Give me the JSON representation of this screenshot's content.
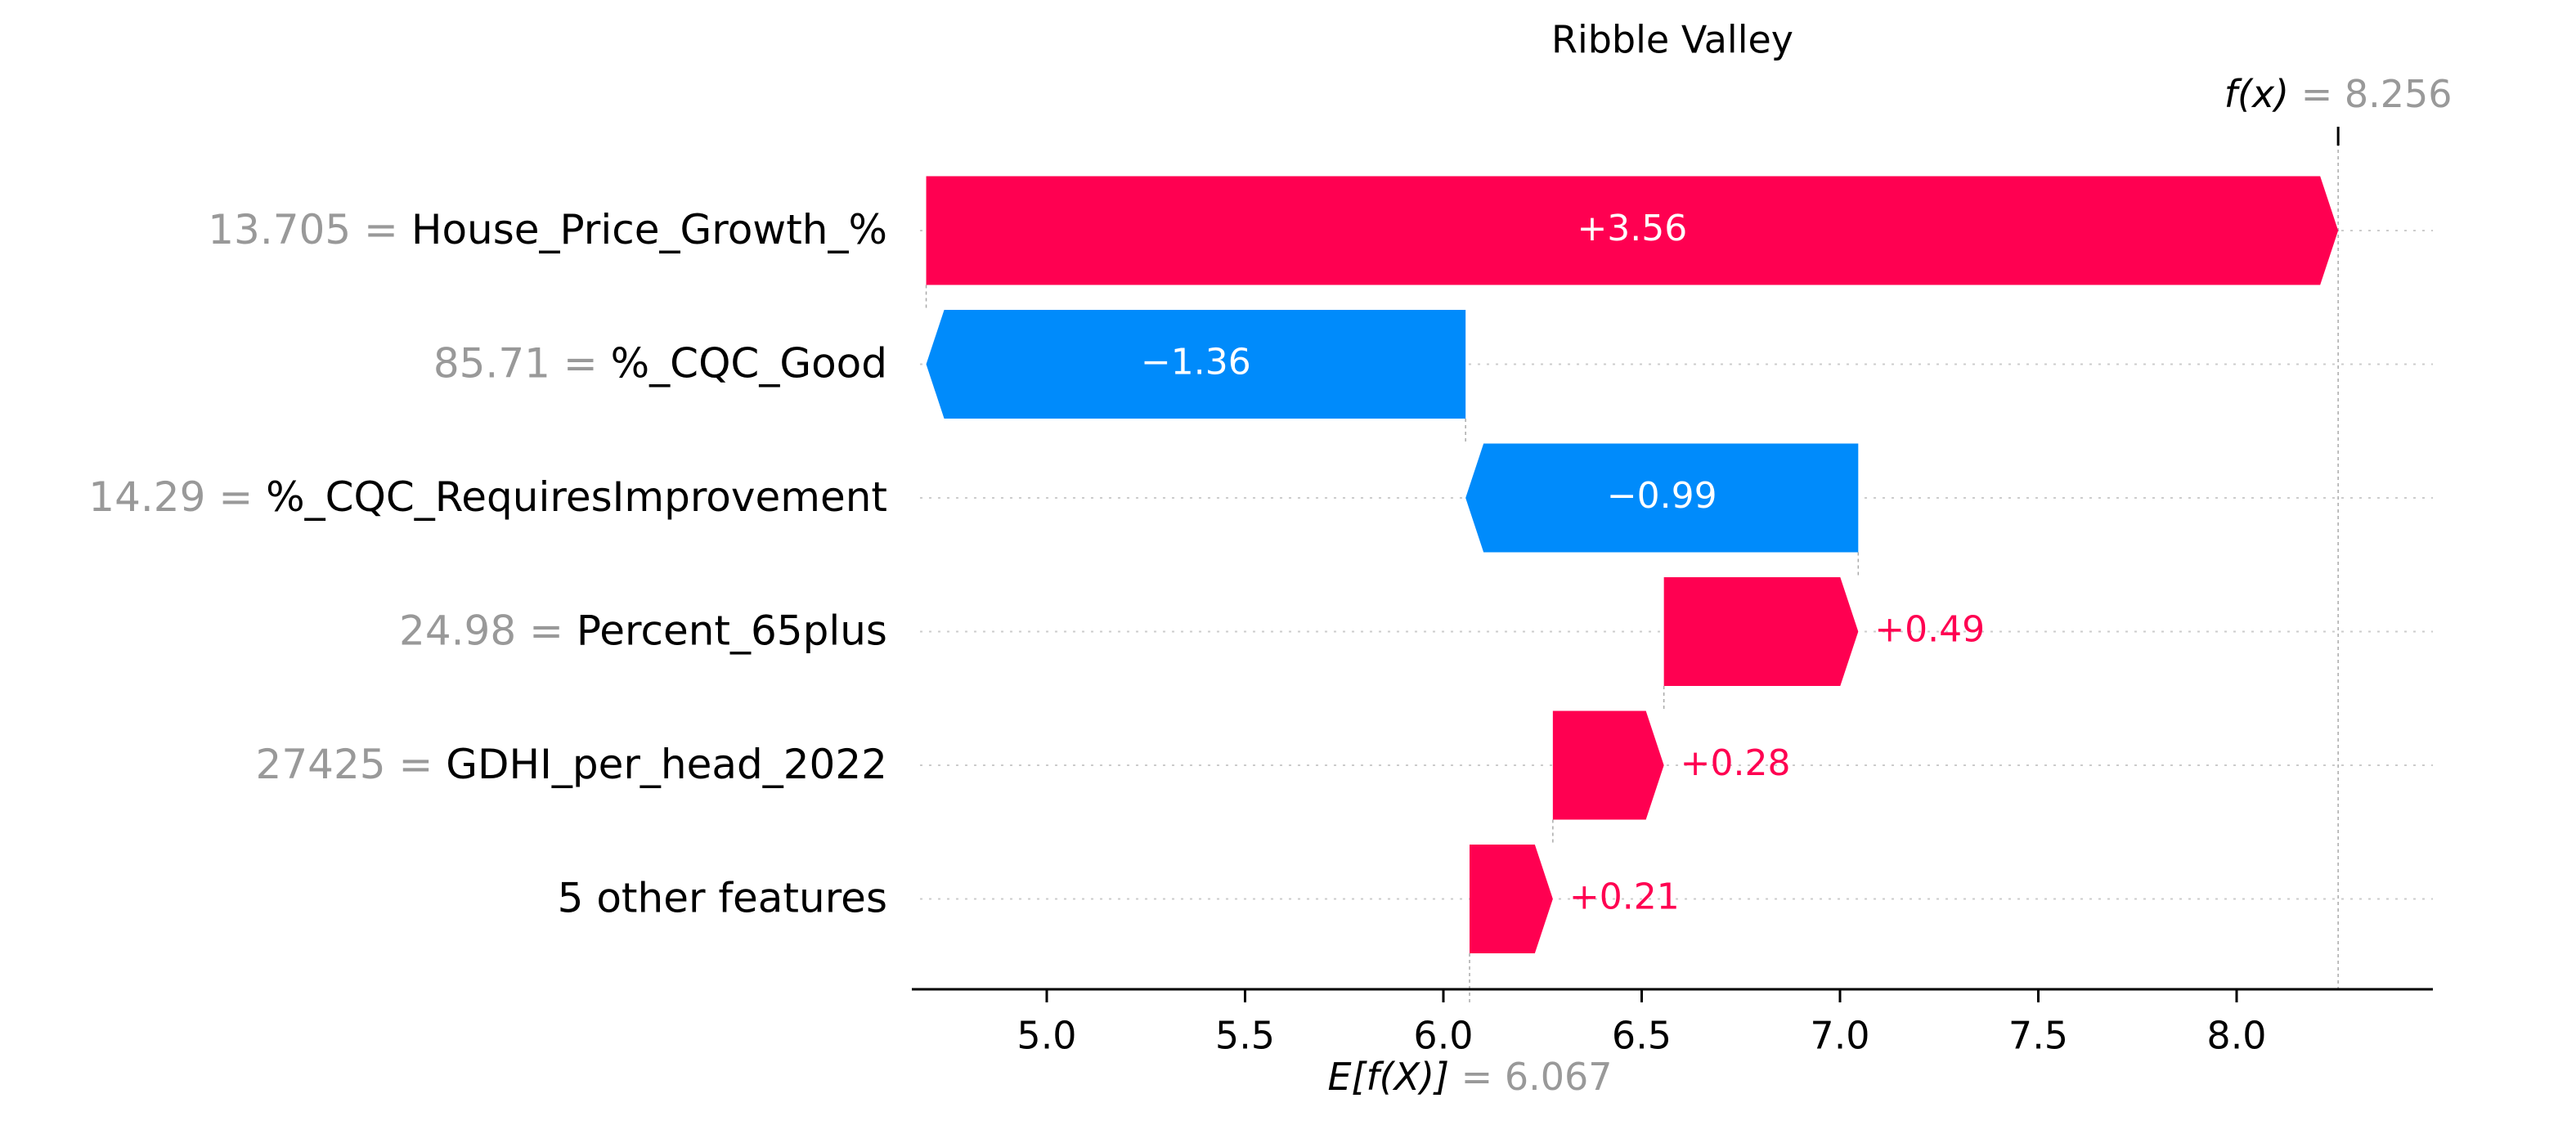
{
  "chart_data": {
    "type": "waterfall",
    "title": "Ribble Valley",
    "base_value": 6.067,
    "base_value_label": "6.067",
    "base_value_name": "E[f(X)]",
    "output_value": 8.256,
    "output_value_label": "8.256",
    "output_value_name": "f(x)",
    "features": [
      {
        "value": "13.705",
        "name": "House_Price_Growth_%",
        "contribution": 3.56,
        "label": "+3.56"
      },
      {
        "value": "85.71",
        "name": "%_CQC_Good",
        "contribution": -1.36,
        "label": "−1.36"
      },
      {
        "value": "14.29",
        "name": "%_CQC_RequiresImprovement",
        "contribution": -0.99,
        "label": "−0.99"
      },
      {
        "value": "24.98",
        "name": "Percent_65plus",
        "contribution": 0.49,
        "label": "+0.49"
      },
      {
        "value": "27425",
        "name": "GDHI_per_head_2022",
        "contribution": 0.28,
        "label": "+0.28"
      },
      {
        "value": "",
        "name": "5 other features",
        "contribution": 0.21,
        "label": "+0.21"
      }
    ],
    "x_ticks": [
      5.0,
      5.5,
      6.0,
      6.5,
      7.0,
      7.5,
      8.0
    ],
    "x_tick_labels": [
      "5.0",
      "5.5",
      "6.0",
      "6.5",
      "7.0",
      "7.5",
      "8.0"
    ],
    "xlim": [
      4.67,
      8.45
    ],
    "colors": {
      "positive": "#ff0051",
      "negative": "#008bfb"
    }
  }
}
